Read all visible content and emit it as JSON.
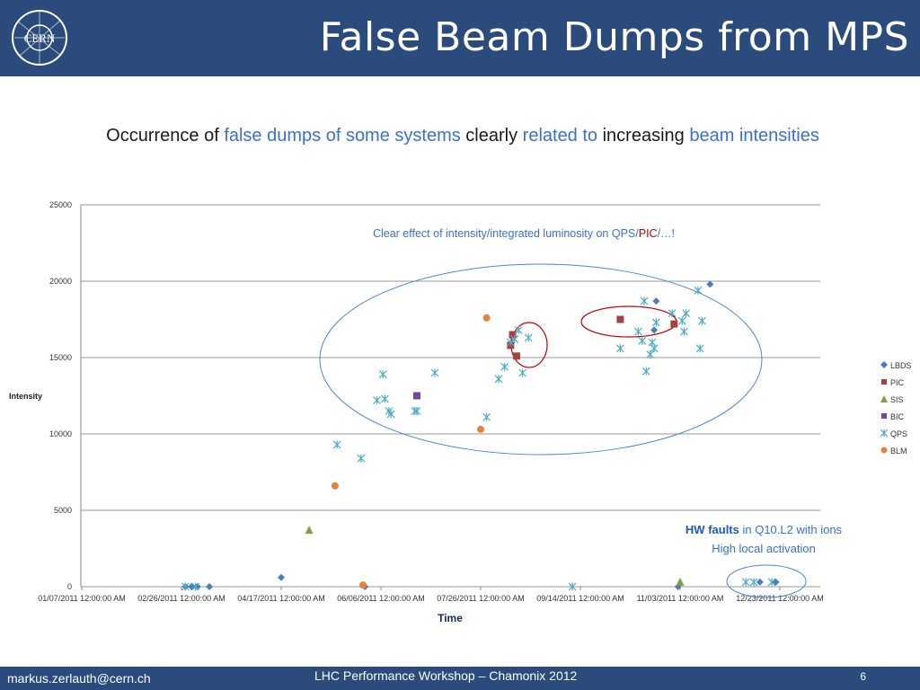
{
  "header": {
    "title": "False Beam Dumps from MPS",
    "logo_text": "CERN"
  },
  "subtitle": {
    "parts": [
      {
        "text": "Occurrence of ",
        "hl": false
      },
      {
        "text": "false dumps of some systems",
        "hl": true
      },
      {
        "text": " clearly ",
        "hl": false
      },
      {
        "text": "related to",
        "hl": true
      },
      {
        "text": " increasing ",
        "hl": false
      },
      {
        "text": "beam intensities",
        "hl": true
      }
    ]
  },
  "chart_data": {
    "type": "scatter",
    "xlabel": "Time",
    "ylabel": "Intensity",
    "ylim": [
      0,
      25000
    ],
    "yticks": [
      0,
      5000,
      10000,
      15000,
      20000,
      25000
    ],
    "xlim": [
      "2011-01-07",
      "2011-12-23"
    ],
    "xticks": [
      "01/07/2011 12:00:00 AM",
      "02/26/2011 12:00:00 AM",
      "04/17/2011 12:00:00 AM",
      "06/06/2011 12:00:00 AM",
      "07/26/2011 12:00:00 AM",
      "09/14/2011 12:00:00 AM",
      "11/03/2011 12:00:00 AM",
      "12/23/2011 12:00:00 AM"
    ],
    "grid": true,
    "legend_position": "right",
    "series": [
      {
        "name": "LBDS",
        "marker": "diamond",
        "color": "#4a7ebb",
        "points": [
          [
            "2011-02-28",
            0
          ],
          [
            "2011-03-03",
            0
          ],
          [
            "2011-03-06",
            0
          ],
          [
            "2011-03-12",
            0
          ],
          [
            "2011-04-17",
            600
          ],
          [
            "2011-05-29",
            0
          ],
          [
            "2011-10-21",
            16800
          ],
          [
            "2011-10-22",
            18700
          ],
          [
            "2011-11-18",
            19800
          ],
          [
            "2011-11-02",
            0
          ],
          [
            "2011-12-13",
            300
          ],
          [
            "2011-12-21",
            300
          ]
        ]
      },
      {
        "name": "PIC",
        "marker": "square",
        "color": "#a5413f",
        "points": [
          [
            "2011-08-11",
            16500
          ],
          [
            "2011-08-10",
            15800
          ],
          [
            "2011-08-13",
            15100
          ],
          [
            "2011-10-04",
            17500
          ],
          [
            "2011-10-31",
            17200
          ]
        ]
      },
      {
        "name": "SIS",
        "marker": "triangle",
        "color": "#7f9e43",
        "points": [
          [
            "2011-05-01",
            3700
          ],
          [
            "2011-11-03",
            300
          ]
        ]
      },
      {
        "name": "BIC",
        "marker": "square",
        "color": "#7048a0",
        "points": [
          [
            "2011-06-24",
            12500
          ]
        ]
      },
      {
        "name": "QPS",
        "marker": "asterisk",
        "color": "#4bacc6",
        "points": [
          [
            "2011-02-28",
            0
          ],
          [
            "2011-03-05",
            0
          ],
          [
            "2011-05-15",
            9300
          ],
          [
            "2011-05-27",
            8400
          ],
          [
            "2011-06-04",
            12200
          ],
          [
            "2011-06-07",
            13900
          ],
          [
            "2011-06-08",
            12300
          ],
          [
            "2011-06-10",
            11500
          ],
          [
            "2011-06-11",
            11300
          ],
          [
            "2011-06-23",
            11500
          ],
          [
            "2011-06-24",
            11500
          ],
          [
            "2011-07-03",
            14000
          ],
          [
            "2011-07-29",
            11100
          ],
          [
            "2011-08-04",
            13600
          ],
          [
            "2011-08-07",
            14400
          ],
          [
            "2011-08-10",
            16000
          ],
          [
            "2011-08-12",
            16200
          ],
          [
            "2011-08-14",
            16800
          ],
          [
            "2011-08-16",
            14000
          ],
          [
            "2011-08-19",
            16300
          ],
          [
            "2011-09-10",
            0
          ],
          [
            "2011-10-04",
            15600
          ],
          [
            "2011-10-13",
            16700
          ],
          [
            "2011-10-15",
            16100
          ],
          [
            "2011-10-16",
            18700
          ],
          [
            "2011-10-17",
            14100
          ],
          [
            "2011-10-19",
            15200
          ],
          [
            "2011-10-20",
            16000
          ],
          [
            "2011-10-21",
            15600
          ],
          [
            "2011-10-22",
            17300
          ],
          [
            "2011-10-30",
            17900
          ],
          [
            "2011-11-04",
            17400
          ],
          [
            "2011-11-05",
            16700
          ],
          [
            "2011-11-06",
            17900
          ],
          [
            "2011-11-12",
            19400
          ],
          [
            "2011-11-13",
            15600
          ],
          [
            "2011-11-14",
            17400
          ],
          [
            "2011-12-06",
            300
          ],
          [
            "2011-12-10",
            300
          ],
          [
            "2011-12-19",
            300
          ]
        ]
      },
      {
        "name": "BLM",
        "marker": "circle",
        "color": "#e0843e",
        "points": [
          [
            "2011-05-14",
            6600
          ],
          [
            "2011-05-28",
            100
          ],
          [
            "2011-07-26",
            10300
          ],
          [
            "2011-07-29",
            17600
          ]
        ]
      }
    ],
    "annotations": {
      "top": {
        "pre": "Clear effect of intensity/integrated luminosity on QPS/",
        "mid": "PIC",
        "post": "/…!"
      },
      "hw_bold": "HW faults",
      "hw_rest": " in Q10.L2 with ions",
      "hw_line2": "High local activation"
    }
  },
  "footer": {
    "email": "markus.zerlauth@cern.ch",
    "conference": "LHC  Performance Workshop – Chamonix 2012",
    "page": "6"
  }
}
